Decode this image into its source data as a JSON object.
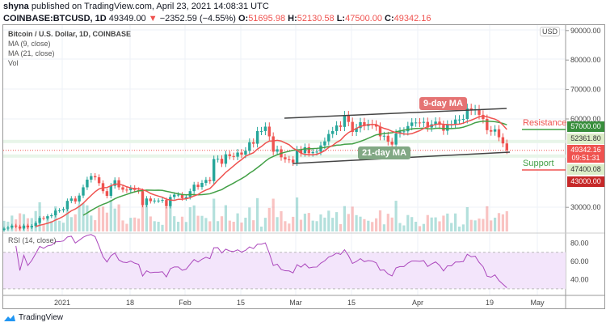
{
  "header": {
    "publisher": "shyna",
    "published_text": "published on TradingView.com, April 23, 2021 14:08:31 UTC",
    "symbol": "COINBASE:BTCUSD, 1D",
    "last": "49349.00",
    "change": "−2352.59 (−4.55%)",
    "open_label": "O:",
    "open": "51695.98",
    "high_label": "H:",
    "high": "52130.58",
    "low_label": "L:",
    "low": "47500.00",
    "close_label": "C:",
    "close": "49342.16"
  },
  "legend": {
    "title": "Bitcoin / U.S. Dollar, 1D, COINBASE",
    "ma9": "MA (9, close)",
    "ma21": "MA (21, close)",
    "vol": "Vol",
    "rsi": "RSI (14, close)"
  },
  "currency": "USD",
  "annotations": {
    "resistance": "Resistance",
    "support": "Support",
    "ma9_callout": "9-day MA",
    "ma21_callout": "21-day MA"
  },
  "price_tags": {
    "resistance": "57000.00",
    "level1": "52361.80",
    "current": "49342.16",
    "countdown": "09:51:31",
    "level2": "47400.08",
    "support": "43000.00"
  },
  "colors": {
    "up": "#26a69a",
    "down": "#ef5350",
    "ma9": "#ef5350",
    "ma21": "#43a047",
    "rsi": "#ab47bc",
    "resistance_tag": "#388e3c",
    "support_tag": "#c62828"
  },
  "footer": {
    "brand": "TradingView"
  },
  "chart_data": {
    "type": "candlestick",
    "start_date": "2020-12-17",
    "price_axis": {
      "ticks": [
        "90000.00",
        "80000.00",
        "70000.00",
        "60000.00",
        "30000.00"
      ],
      "range": [
        20000,
        92000
      ]
    },
    "rsi_axis": {
      "ticks": [
        "80.00",
        "60.00",
        "40.00"
      ],
      "band": [
        30,
        70
      ]
    },
    "x_ticks": [
      "2021",
      "18",
      "Feb",
      "15",
      "Mar",
      "15",
      "Apr",
      "19",
      "May"
    ],
    "closes": [
      22800,
      23100,
      23800,
      23500,
      22800,
      23800,
      23200,
      23700,
      24700,
      26400,
      26200,
      27000,
      27300,
      28900,
      29000,
      29400,
      32200,
      33000,
      32000,
      34000,
      36800,
      39400,
      40600,
      40200,
      38200,
      35500,
      33900,
      37300,
      39200,
      36800,
      36000,
      35800,
      36600,
      35900,
      35500,
      30800,
      33000,
      32100,
      32300,
      32300,
      32500,
      30400,
      33500,
      34300,
      34300,
      33100,
      33500,
      35500,
      37700,
      36900,
      38300,
      39300,
      38900,
      46400,
      46500,
      44800,
      48000,
      47400,
      47200,
      48600,
      47900,
      49200,
      52100,
      51600,
      55900,
      55900,
      57400,
      54100,
      48900,
      49700,
      47000,
      46300,
      46200,
      45200,
      49600,
      48400,
      50400,
      48400,
      48800,
      48900,
      51000,
      52400,
      54900,
      55900,
      57800,
      57300,
      61200,
      59000,
      55600,
      56900,
      58900,
      57600,
      58300,
      58100,
      57400,
      54100,
      54300,
      52300,
      51300,
      55100,
      55800,
      55800,
      57600,
      58800,
      58800,
      58700,
      59000,
      57100,
      58200,
      59100,
      58000,
      56000,
      58100,
      58100,
      59800,
      59800,
      60000,
      63600,
      62900,
      63200,
      61400,
      60000,
      56200,
      55700,
      56500,
      53800,
      51700,
      49342
    ]
  }
}
